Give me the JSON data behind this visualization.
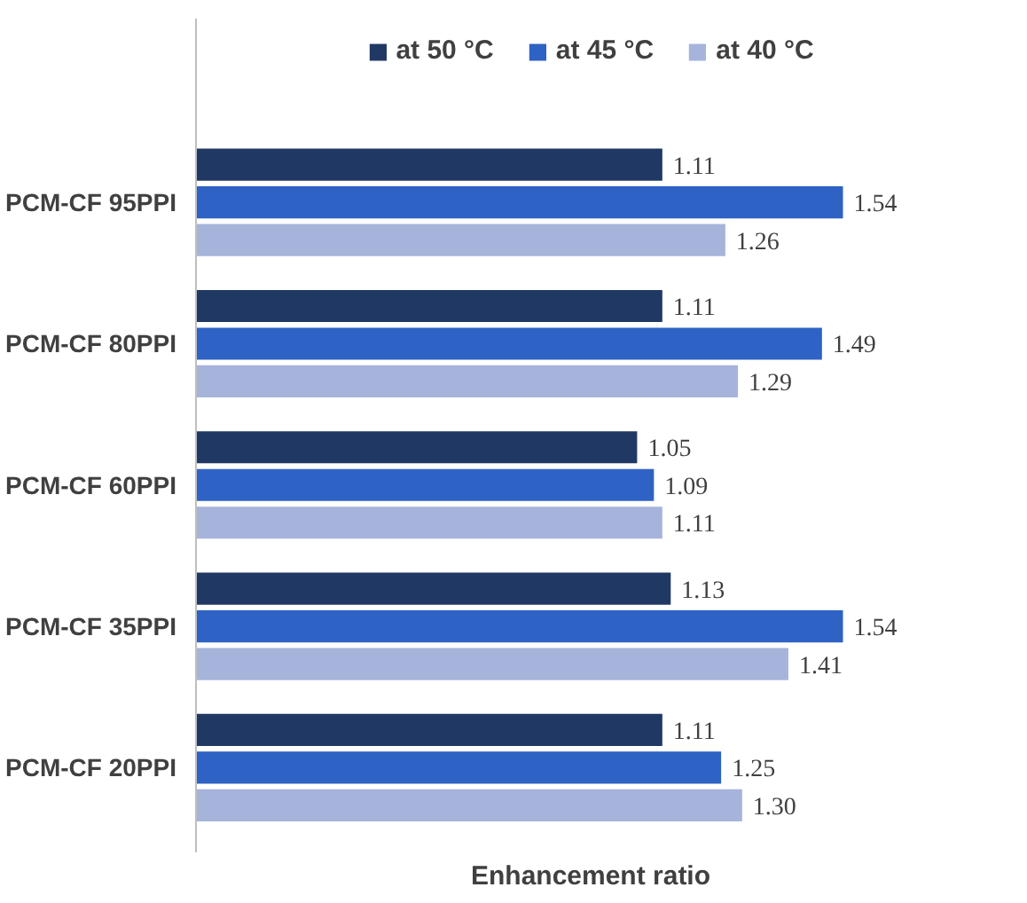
{
  "chart_data": {
    "type": "bar",
    "orientation": "horizontal",
    "xlabel": "Enhancement ratio",
    "legend": "top",
    "categories": [
      "PCM-CF 95PPI",
      "PCM-CF 80PPI",
      "PCM-CF 60PPI",
      "PCM-CF 35PPI",
      "PCM-CF 20PPI"
    ],
    "series": [
      {
        "name": "at 50 °C",
        "color": "#203864",
        "values": [
          1.11,
          1.11,
          1.05,
          1.13,
          1.11
        ],
        "value_labels": [
          "1.11",
          "1.11",
          "1.05",
          "1.13",
          "1.11"
        ]
      },
      {
        "name": "at 45 °C",
        "color": "#2e62c4",
        "values": [
          1.54,
          1.49,
          1.09,
          1.54,
          1.25
        ],
        "value_labels": [
          "1.54",
          "1.49",
          "1.09",
          "1.54",
          "1.25"
        ]
      },
      {
        "name": "at 40 °C",
        "color": "#a6b4dc",
        "values": [
          1.26,
          1.29,
          1.11,
          1.41,
          1.3
        ],
        "value_labels": [
          "1.26",
          "1.29",
          "1.11",
          "1.41",
          "1.30"
        ]
      }
    ]
  }
}
